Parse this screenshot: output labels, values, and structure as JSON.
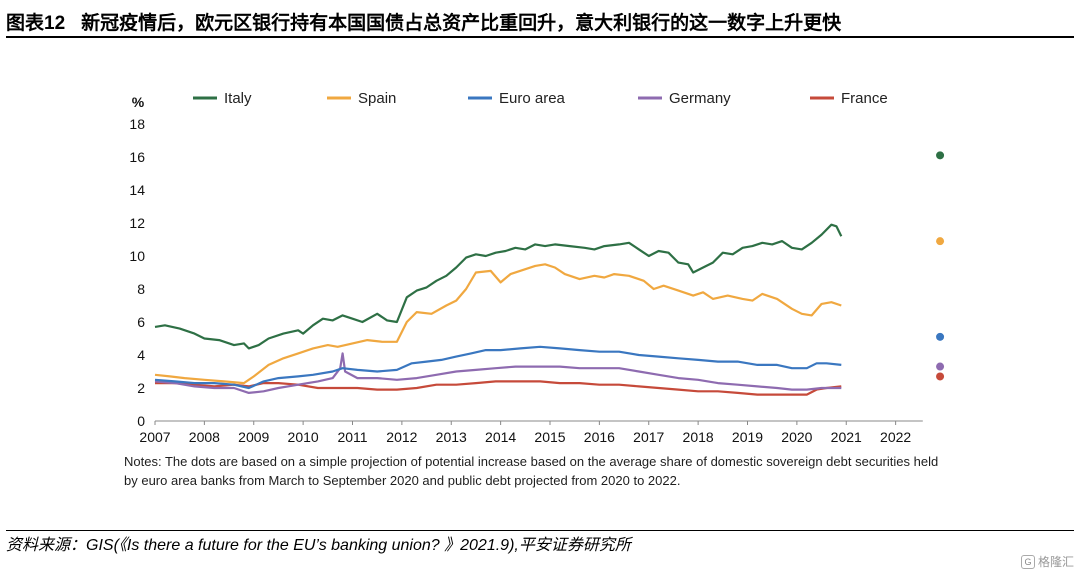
{
  "header": {
    "figure_number": "图表12",
    "title": "新冠疫情后，欧元区银行持有本国国债占总资产比重回升，意大利银行的这一数字上升更快"
  },
  "notes": "Notes: The dots are based on a simple projection of potential increase based on the average share of domestic sovereign debt securities held by euro area banks from March to September 2020 and public debt projected from 2020 to 2022.",
  "source": "资料来源：GIS(《Is there a future for the EU’s banking union? 》2021.9),平安证券研究所",
  "watermark": {
    "icon": "gelonghui-logo-icon",
    "text": "格隆汇"
  },
  "chart_data": {
    "type": "line",
    "ylabel": "%",
    "xlabel": "",
    "ylim": [
      0,
      18
    ],
    "yticks": [
      0,
      2,
      4,
      6,
      8,
      10,
      12,
      14,
      16,
      18
    ],
    "xlim": [
      2007,
      2023
    ],
    "xticks": [
      2007,
      2008,
      2009,
      2010,
      2011,
      2012,
      2013,
      2014,
      2015,
      2016,
      2017,
      2018,
      2019,
      2020,
      2021,
      2022
    ],
    "grid": false,
    "legend_position": "top",
    "series": [
      {
        "name": "Italy",
        "color": "#2e7045",
        "points": [
          [
            2007.0,
            5.7
          ],
          [
            2007.2,
            5.8
          ],
          [
            2007.5,
            5.6
          ],
          [
            2007.8,
            5.3
          ],
          [
            2008.0,
            5.0
          ],
          [
            2008.3,
            4.9
          ],
          [
            2008.6,
            4.6
          ],
          [
            2008.8,
            4.7
          ],
          [
            2008.9,
            4.4
          ],
          [
            2009.1,
            4.6
          ],
          [
            2009.3,
            5.0
          ],
          [
            2009.6,
            5.3
          ],
          [
            2009.9,
            5.5
          ],
          [
            2010.0,
            5.3
          ],
          [
            2010.2,
            5.8
          ],
          [
            2010.4,
            6.2
          ],
          [
            2010.6,
            6.1
          ],
          [
            2010.8,
            6.4
          ],
          [
            2011.0,
            6.2
          ],
          [
            2011.2,
            6.0
          ],
          [
            2011.5,
            6.5
          ],
          [
            2011.7,
            6.1
          ],
          [
            2011.9,
            6.0
          ],
          [
            2012.1,
            7.5
          ],
          [
            2012.3,
            7.9
          ],
          [
            2012.5,
            8.1
          ],
          [
            2012.7,
            8.5
          ],
          [
            2012.9,
            8.8
          ],
          [
            2013.1,
            9.3
          ],
          [
            2013.3,
            9.9
          ],
          [
            2013.5,
            10.1
          ],
          [
            2013.7,
            10.0
          ],
          [
            2013.9,
            10.2
          ],
          [
            2014.1,
            10.3
          ],
          [
            2014.3,
            10.5
          ],
          [
            2014.5,
            10.4
          ],
          [
            2014.7,
            10.7
          ],
          [
            2014.9,
            10.6
          ],
          [
            2015.1,
            10.7
          ],
          [
            2015.4,
            10.6
          ],
          [
            2015.7,
            10.5
          ],
          [
            2015.9,
            10.4
          ],
          [
            2016.1,
            10.6
          ],
          [
            2016.4,
            10.7
          ],
          [
            2016.6,
            10.8
          ],
          [
            2016.8,
            10.4
          ],
          [
            2017.0,
            10.0
          ],
          [
            2017.2,
            10.3
          ],
          [
            2017.4,
            10.2
          ],
          [
            2017.6,
            9.6
          ],
          [
            2017.8,
            9.5
          ],
          [
            2017.9,
            9.0
          ],
          [
            2018.1,
            9.3
          ],
          [
            2018.3,
            9.6
          ],
          [
            2018.5,
            10.2
          ],
          [
            2018.7,
            10.1
          ],
          [
            2018.9,
            10.5
          ],
          [
            2019.1,
            10.6
          ],
          [
            2019.3,
            10.8
          ],
          [
            2019.5,
            10.7
          ],
          [
            2019.7,
            10.9
          ],
          [
            2019.9,
            10.5
          ],
          [
            2020.1,
            10.4
          ],
          [
            2020.3,
            10.8
          ],
          [
            2020.5,
            11.3
          ],
          [
            2020.7,
            11.9
          ],
          [
            2020.8,
            11.8
          ],
          [
            2020.9,
            11.2
          ]
        ]
      },
      {
        "name": "Spain",
        "color": "#f0a840",
        "points": [
          [
            2007.0,
            2.8
          ],
          [
            2007.3,
            2.7
          ],
          [
            2007.6,
            2.6
          ],
          [
            2008.0,
            2.5
          ],
          [
            2008.4,
            2.4
          ],
          [
            2008.8,
            2.3
          ],
          [
            2009.0,
            2.7
          ],
          [
            2009.3,
            3.4
          ],
          [
            2009.6,
            3.8
          ],
          [
            2009.9,
            4.1
          ],
          [
            2010.2,
            4.4
          ],
          [
            2010.5,
            4.6
          ],
          [
            2010.7,
            4.5
          ],
          [
            2011.0,
            4.7
          ],
          [
            2011.3,
            4.9
          ],
          [
            2011.6,
            4.8
          ],
          [
            2011.9,
            4.8
          ],
          [
            2012.1,
            6.0
          ],
          [
            2012.3,
            6.6
          ],
          [
            2012.6,
            6.5
          ],
          [
            2012.9,
            7.0
          ],
          [
            2013.1,
            7.3
          ],
          [
            2013.3,
            8.0
          ],
          [
            2013.5,
            9.0
          ],
          [
            2013.8,
            9.1
          ],
          [
            2014.0,
            8.4
          ],
          [
            2014.2,
            8.9
          ],
          [
            2014.5,
            9.2
          ],
          [
            2014.7,
            9.4
          ],
          [
            2014.9,
            9.5
          ],
          [
            2015.1,
            9.3
          ],
          [
            2015.3,
            8.9
          ],
          [
            2015.6,
            8.6
          ],
          [
            2015.9,
            8.8
          ],
          [
            2016.1,
            8.7
          ],
          [
            2016.3,
            8.9
          ],
          [
            2016.6,
            8.8
          ],
          [
            2016.9,
            8.5
          ],
          [
            2017.1,
            8.0
          ],
          [
            2017.3,
            8.2
          ],
          [
            2017.6,
            7.9
          ],
          [
            2017.9,
            7.6
          ],
          [
            2018.1,
            7.8
          ],
          [
            2018.3,
            7.4
          ],
          [
            2018.6,
            7.6
          ],
          [
            2018.9,
            7.4
          ],
          [
            2019.1,
            7.3
          ],
          [
            2019.3,
            7.7
          ],
          [
            2019.6,
            7.4
          ],
          [
            2019.9,
            6.8
          ],
          [
            2020.1,
            6.5
          ],
          [
            2020.3,
            6.4
          ],
          [
            2020.5,
            7.1
          ],
          [
            2020.7,
            7.2
          ],
          [
            2020.9,
            7.0
          ]
        ]
      },
      {
        "name": "Euro area",
        "color": "#3a77c0",
        "points": [
          [
            2007.0,
            2.5
          ],
          [
            2007.4,
            2.4
          ],
          [
            2007.8,
            2.3
          ],
          [
            2008.2,
            2.3
          ],
          [
            2008.6,
            2.2
          ],
          [
            2008.9,
            2.0
          ],
          [
            2009.2,
            2.4
          ],
          [
            2009.5,
            2.6
          ],
          [
            2009.9,
            2.7
          ],
          [
            2010.2,
            2.8
          ],
          [
            2010.6,
            3.0
          ],
          [
            2010.8,
            3.2
          ],
          [
            2011.1,
            3.1
          ],
          [
            2011.5,
            3.0
          ],
          [
            2011.9,
            3.1
          ],
          [
            2012.2,
            3.5
          ],
          [
            2012.5,
            3.6
          ],
          [
            2012.8,
            3.7
          ],
          [
            2013.1,
            3.9
          ],
          [
            2013.4,
            4.1
          ],
          [
            2013.7,
            4.3
          ],
          [
            2014.0,
            4.3
          ],
          [
            2014.4,
            4.4
          ],
          [
            2014.8,
            4.5
          ],
          [
            2015.2,
            4.4
          ],
          [
            2015.6,
            4.3
          ],
          [
            2016.0,
            4.2
          ],
          [
            2016.4,
            4.2
          ],
          [
            2016.8,
            4.0
          ],
          [
            2017.2,
            3.9
          ],
          [
            2017.6,
            3.8
          ],
          [
            2018.0,
            3.7
          ],
          [
            2018.4,
            3.6
          ],
          [
            2018.8,
            3.6
          ],
          [
            2019.2,
            3.4
          ],
          [
            2019.6,
            3.4
          ],
          [
            2019.9,
            3.2
          ],
          [
            2020.2,
            3.2
          ],
          [
            2020.4,
            3.5
          ],
          [
            2020.6,
            3.5
          ],
          [
            2020.9,
            3.4
          ]
        ]
      },
      {
        "name": "Germany",
        "color": "#8e6bb0",
        "points": [
          [
            2007.0,
            2.4
          ],
          [
            2007.4,
            2.3
          ],
          [
            2007.8,
            2.1
          ],
          [
            2008.2,
            2.0
          ],
          [
            2008.6,
            2.0
          ],
          [
            2008.9,
            1.7
          ],
          [
            2009.2,
            1.8
          ],
          [
            2009.5,
            2.0
          ],
          [
            2009.9,
            2.2
          ],
          [
            2010.3,
            2.4
          ],
          [
            2010.6,
            2.6
          ],
          [
            2010.75,
            3.2
          ],
          [
            2010.8,
            4.1
          ],
          [
            2010.85,
            3.0
          ],
          [
            2011.1,
            2.6
          ],
          [
            2011.5,
            2.6
          ],
          [
            2011.9,
            2.5
          ],
          [
            2012.3,
            2.6
          ],
          [
            2012.7,
            2.8
          ],
          [
            2013.1,
            3.0
          ],
          [
            2013.5,
            3.1
          ],
          [
            2013.9,
            3.2
          ],
          [
            2014.3,
            3.3
          ],
          [
            2014.8,
            3.3
          ],
          [
            2015.2,
            3.3
          ],
          [
            2015.6,
            3.2
          ],
          [
            2016.0,
            3.2
          ],
          [
            2016.4,
            3.2
          ],
          [
            2016.8,
            3.0
          ],
          [
            2017.2,
            2.8
          ],
          [
            2017.6,
            2.6
          ],
          [
            2018.0,
            2.5
          ],
          [
            2018.4,
            2.3
          ],
          [
            2018.8,
            2.2
          ],
          [
            2019.2,
            2.1
          ],
          [
            2019.6,
            2.0
          ],
          [
            2019.9,
            1.9
          ],
          [
            2020.2,
            1.9
          ],
          [
            2020.5,
            2.0
          ],
          [
            2020.9,
            2.0
          ]
        ]
      },
      {
        "name": "France",
        "color": "#c64a3a",
        "points": [
          [
            2007.0,
            2.3
          ],
          [
            2007.4,
            2.3
          ],
          [
            2007.8,
            2.2
          ],
          [
            2008.2,
            2.1
          ],
          [
            2008.6,
            2.2
          ],
          [
            2008.9,
            2.1
          ],
          [
            2009.2,
            2.3
          ],
          [
            2009.5,
            2.3
          ],
          [
            2009.9,
            2.2
          ],
          [
            2010.3,
            2.0
          ],
          [
            2010.7,
            2.0
          ],
          [
            2011.1,
            2.0
          ],
          [
            2011.5,
            1.9
          ],
          [
            2011.9,
            1.9
          ],
          [
            2012.3,
            2.0
          ],
          [
            2012.7,
            2.2
          ],
          [
            2013.1,
            2.2
          ],
          [
            2013.5,
            2.3
          ],
          [
            2013.9,
            2.4
          ],
          [
            2014.3,
            2.4
          ],
          [
            2014.8,
            2.4
          ],
          [
            2015.2,
            2.3
          ],
          [
            2015.6,
            2.3
          ],
          [
            2016.0,
            2.2
          ],
          [
            2016.4,
            2.2
          ],
          [
            2016.8,
            2.1
          ],
          [
            2017.2,
            2.0
          ],
          [
            2017.6,
            1.9
          ],
          [
            2018.0,
            1.8
          ],
          [
            2018.4,
            1.8
          ],
          [
            2018.8,
            1.7
          ],
          [
            2019.2,
            1.6
          ],
          [
            2019.6,
            1.6
          ],
          [
            2019.9,
            1.6
          ],
          [
            2020.2,
            1.6
          ],
          [
            2020.4,
            1.9
          ],
          [
            2020.6,
            2.0
          ],
          [
            2020.9,
            2.1
          ]
        ]
      }
    ],
    "projected_dots": [
      {
        "name": "Italy",
        "x": 2022.9,
        "y": 16.1,
        "color": "#2e7045"
      },
      {
        "name": "Spain",
        "x": 2022.9,
        "y": 10.9,
        "color": "#f0a840"
      },
      {
        "name": "Euro area",
        "x": 2022.9,
        "y": 5.1,
        "color": "#3a77c0"
      },
      {
        "name": "Germany",
        "x": 2022.9,
        "y": 3.3,
        "color": "#8e6bb0"
      },
      {
        "name": "France",
        "x": 2022.9,
        "y": 2.7,
        "color": "#c64a3a"
      }
    ]
  }
}
